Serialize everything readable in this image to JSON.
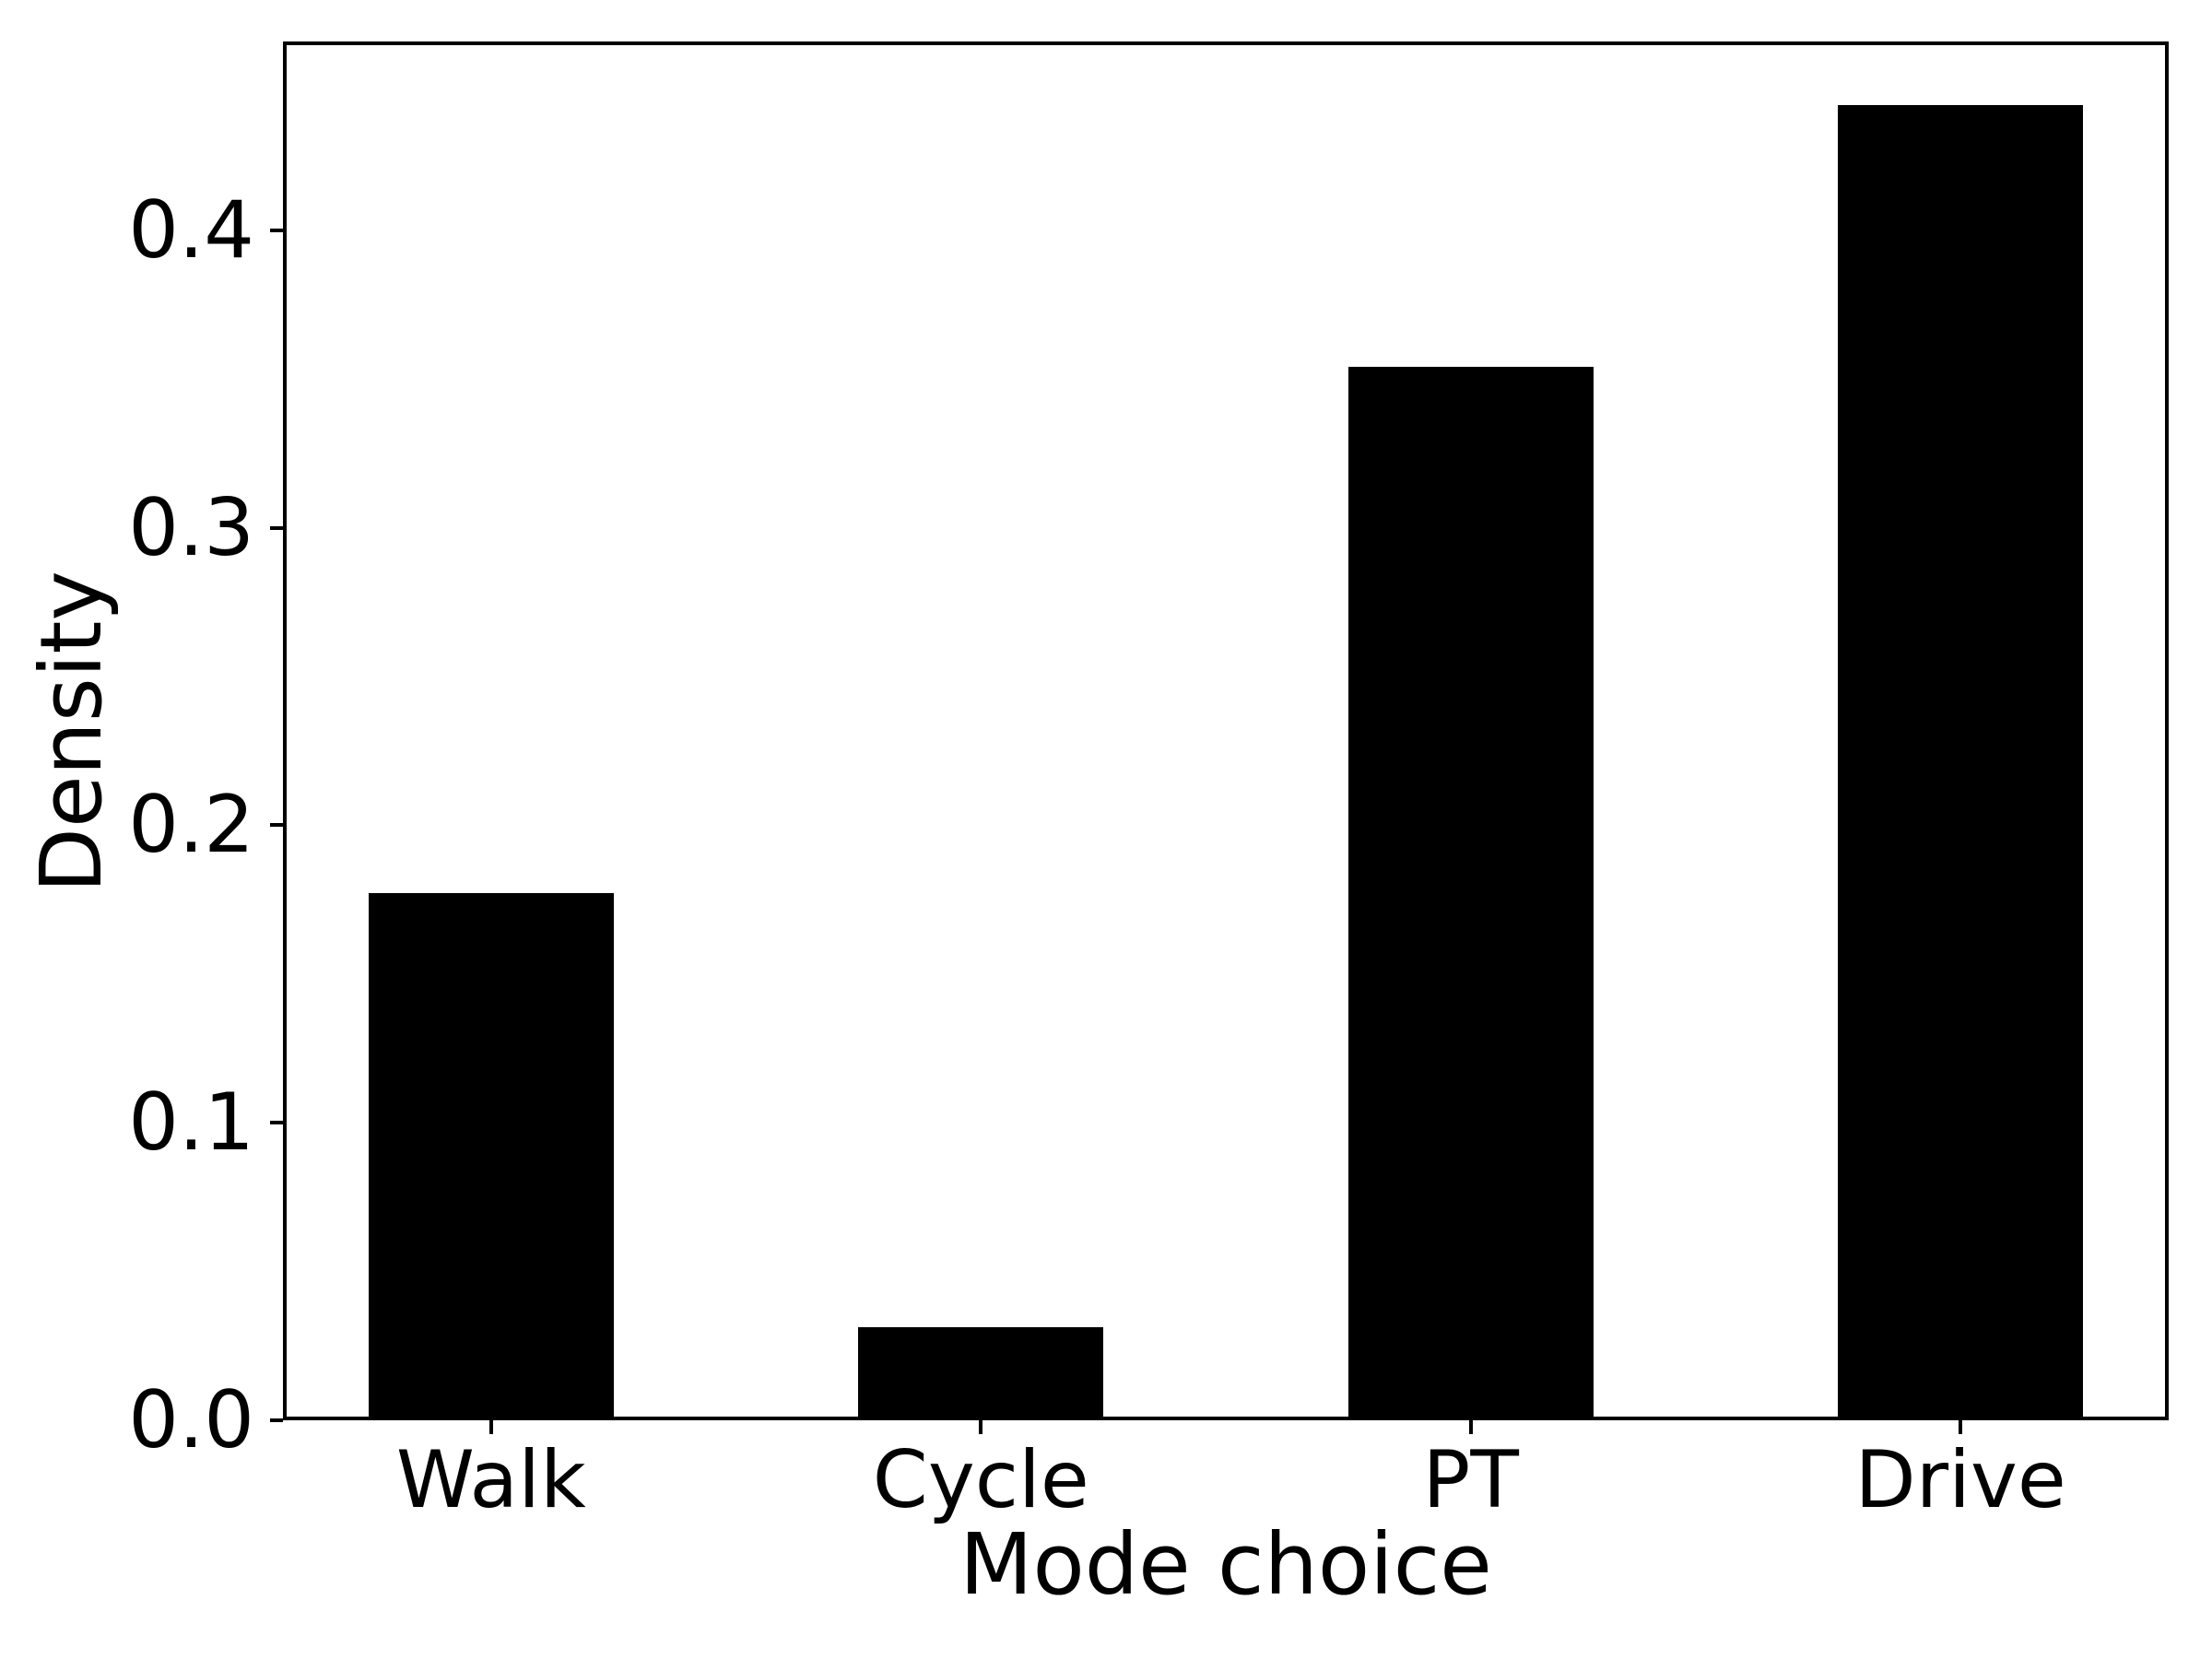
{
  "chart_data": {
    "type": "bar",
    "title": "",
    "categories": [
      "Walk",
      "Cycle",
      "PT",
      "Drive"
    ],
    "values": [
      0.176,
      0.03,
      0.353,
      0.441
    ],
    "xlabel": "Mode choice",
    "ylabel": "Density",
    "ylim": [
      0,
      0.4635
    ],
    "yticks": [
      0.0,
      0.1,
      0.2,
      0.3,
      0.4
    ],
    "ytick_labels": [
      "0.0",
      "0.1",
      "0.2",
      "0.3",
      "0.4"
    ],
    "bar_color": "#000000",
    "axis_color": "#000000",
    "background_color": "#ffffff",
    "grid": false,
    "legend": false,
    "bar_width_fraction": 0.5
  }
}
